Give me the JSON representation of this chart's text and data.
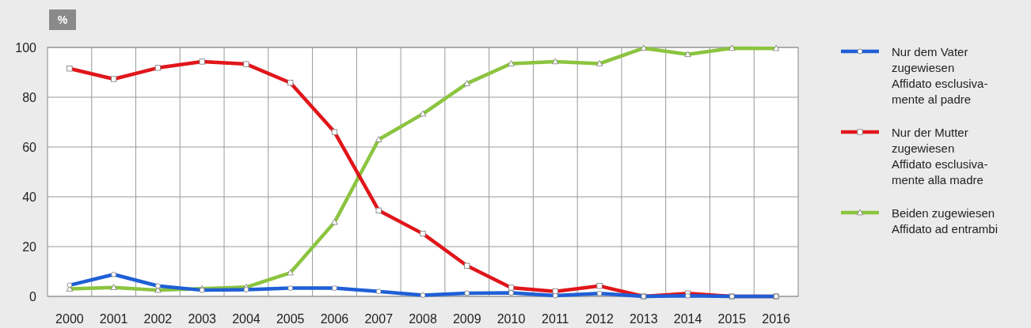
{
  "chart_data": {
    "type": "line",
    "ylabel": "%",
    "categories": [
      "2000",
      "2001",
      "2002",
      "2003",
      "2004",
      "2005",
      "2006",
      "2007",
      "2008",
      "2009",
      "2010",
      "2011",
      "2012",
      "2013",
      "2014",
      "2015",
      "2016"
    ],
    "ylim": [
      0,
      100
    ],
    "yticks": [
      0,
      20,
      40,
      60,
      80,
      100
    ],
    "grid": true,
    "legend": "right",
    "series": [
      {
        "name": "Nur dem Vater\nzugewiesen\nAffidato esclusiva-\nmente al padre",
        "color": "#1f5fd6",
        "marker": "circle",
        "values": [
          4.5,
          8.8,
          4.2,
          2.5,
          2.7,
          3.3,
          3.3,
          2.0,
          0.5,
          1.3,
          1.4,
          0.3,
          1.2,
          0,
          0.2,
          0,
          0
        ]
      },
      {
        "name": "Nur der Mutter\nzugewiesen\nAffidato esclusiva-\nmente alla madre",
        "color": "#e0161b",
        "marker": "square",
        "values": [
          91.5,
          87.3,
          91.8,
          94.3,
          93.3,
          85.8,
          66,
          34.5,
          25.2,
          12.3,
          3.5,
          2.0,
          4.2,
          0,
          1.2,
          0,
          0
        ]
      },
      {
        "name": "Beiden zugewiesen\nAffidato ad entrambi",
        "color": "#8bc43f",
        "marker": "triangle",
        "values": [
          3,
          3.6,
          2.5,
          3.1,
          3.7,
          9.5,
          29.8,
          63,
          73.3,
          85.5,
          93.5,
          94.3,
          93.5,
          99.7,
          97.2,
          99.7,
          99.6
        ]
      }
    ]
  }
}
